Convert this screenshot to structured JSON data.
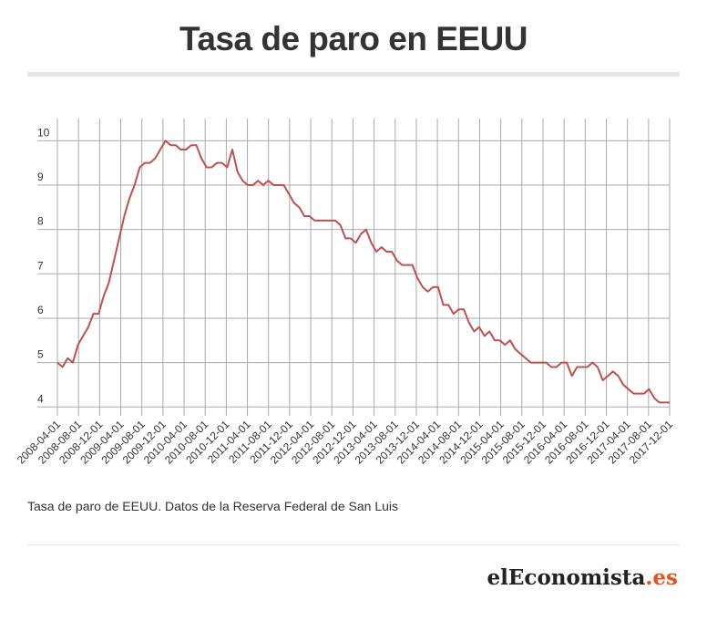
{
  "page": {
    "title": "Tasa de paro en EEUU",
    "caption": "Tasa de paro de EEUU. Datos de la Reserva Federal de San Luis",
    "brand": {
      "prefix": "el",
      "rest": "Economista",
      "accent": ".es"
    }
  },
  "chart_data": {
    "type": "line",
    "title": "Tasa de paro en EEUU",
    "xlabel": "",
    "ylabel": "",
    "ylim": [
      3.8,
      10.5
    ],
    "yticks": [
      4,
      5,
      6,
      7,
      8,
      9,
      10
    ],
    "grid": true,
    "line_color": "#c0504d",
    "x_start": "2008-04",
    "x_end": "2017-12",
    "tick_labels": [
      "2008-04-01",
      "2008-08-01",
      "2008-12-01",
      "2009-04-01",
      "2009-08-01",
      "2009-12-01",
      "2010-04-01",
      "2010-08-01",
      "2010-12-01",
      "2011-04-01",
      "2011-08-01",
      "2011-12-01",
      "2012-04-01",
      "2012-08-01",
      "2012-12-01",
      "2013-04-01",
      "2013-08-01",
      "2013-12-01",
      "2014-04-01",
      "2014-08-01",
      "2014-12-01",
      "2015-04-01",
      "2015-08-01",
      "2015-12-01",
      "2016-04-01",
      "2016-08-01",
      "2016-12-01",
      "2017-04-01",
      "2017-08-01",
      "2017-12-01"
    ],
    "values": [
      5.0,
      4.9,
      5.1,
      5.0,
      5.4,
      5.6,
      5.8,
      6.1,
      6.1,
      6.5,
      6.8,
      7.3,
      7.8,
      8.3,
      8.7,
      9.0,
      9.4,
      9.5,
      9.5,
      9.6,
      9.8,
      10.0,
      9.9,
      9.9,
      9.8,
      9.8,
      9.9,
      9.9,
      9.6,
      9.4,
      9.4,
      9.5,
      9.5,
      9.4,
      9.8,
      9.3,
      9.1,
      9.0,
      9.0,
      9.1,
      9.0,
      9.1,
      9.0,
      9.0,
      9.0,
      8.8,
      8.6,
      8.5,
      8.3,
      8.3,
      8.2,
      8.2,
      8.2,
      8.2,
      8.2,
      8.1,
      7.8,
      7.8,
      7.7,
      7.9,
      8.0,
      7.7,
      7.5,
      7.6,
      7.5,
      7.5,
      7.3,
      7.2,
      7.2,
      7.2,
      6.9,
      6.7,
      6.6,
      6.7,
      6.7,
      6.3,
      6.3,
      6.1,
      6.2,
      6.2,
      5.9,
      5.7,
      5.8,
      5.6,
      5.7,
      5.5,
      5.5,
      5.4,
      5.5,
      5.3,
      5.2,
      5.1,
      5.0,
      5.0,
      5.0,
      5.0,
      4.9,
      4.9,
      5.0,
      5.0,
      4.7,
      4.9,
      4.9,
      4.9,
      5.0,
      4.9,
      4.6,
      4.7,
      4.8,
      4.7,
      4.5,
      4.4,
      4.3,
      4.3,
      4.3,
      4.4,
      4.2,
      4.1,
      4.1,
      4.1
    ]
  }
}
